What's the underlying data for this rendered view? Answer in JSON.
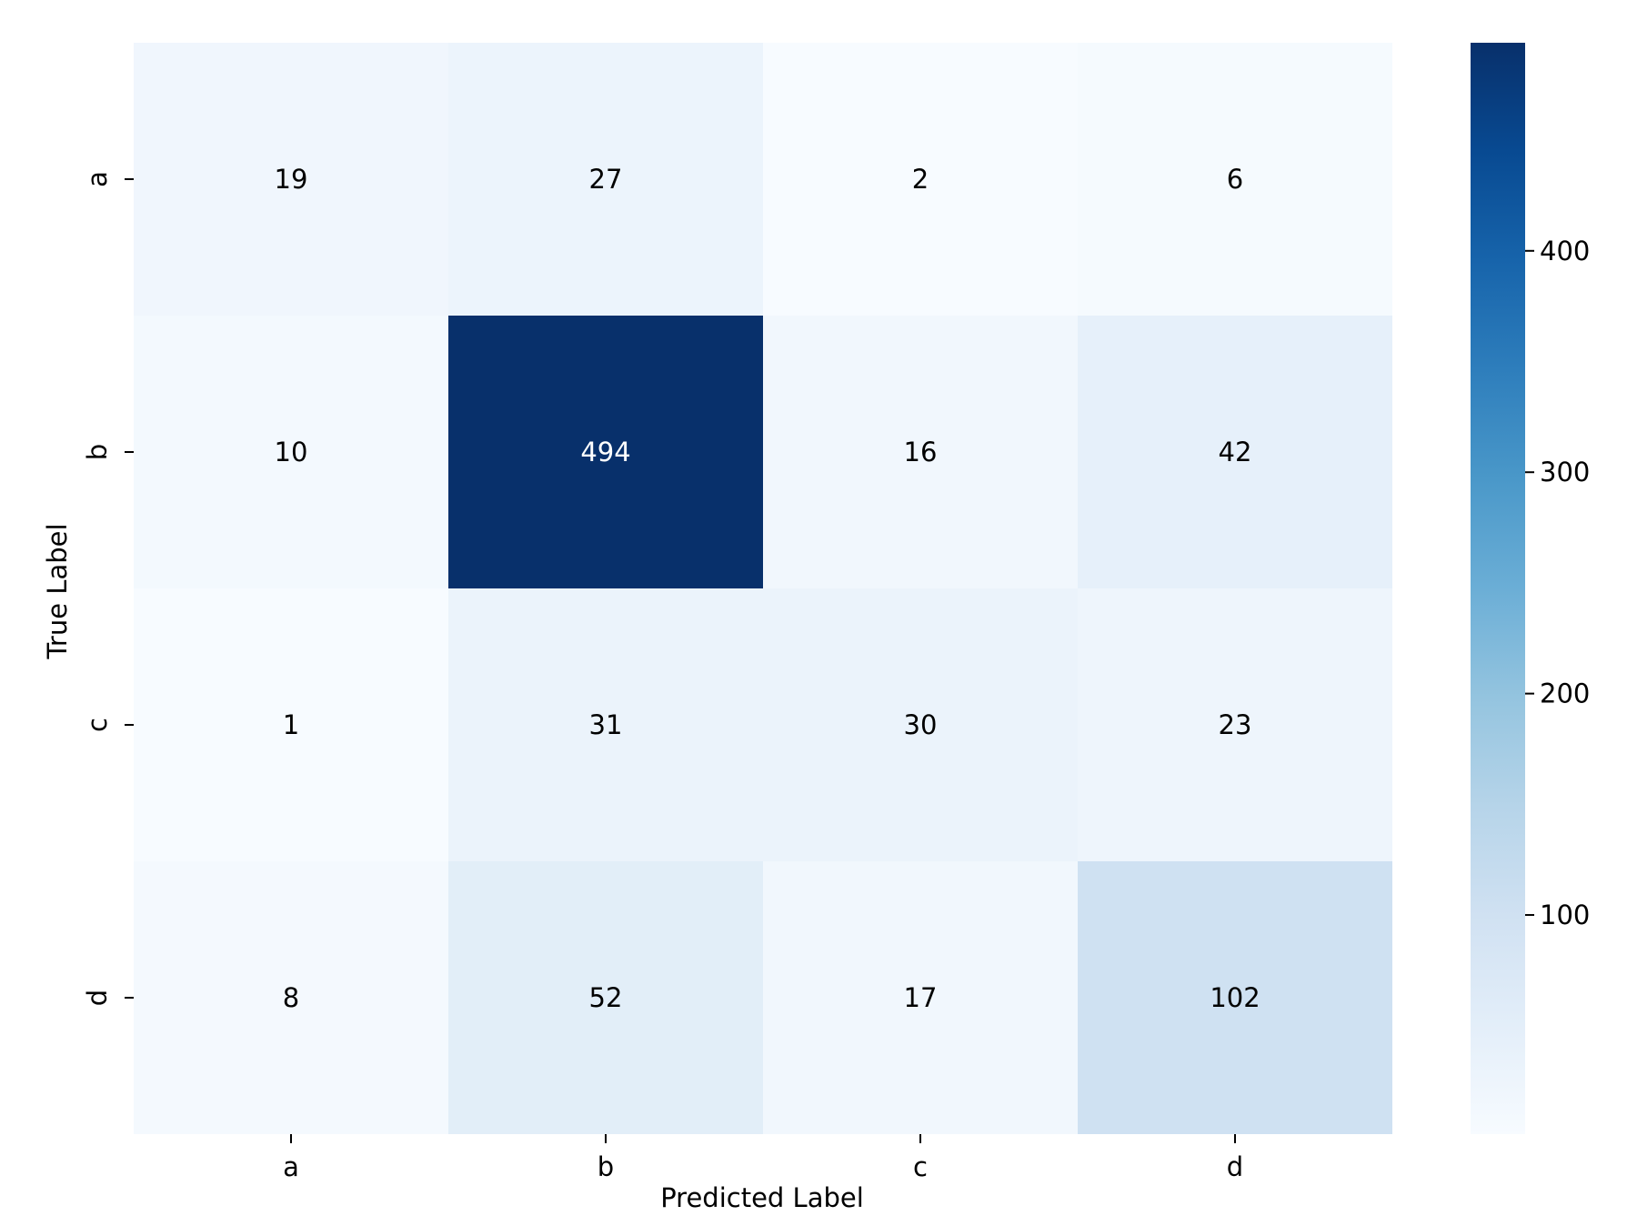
{
  "chart_data": {
    "type": "heatmap",
    "title": "",
    "xlabel": "Predicted Label",
    "ylabel": "True Label",
    "x_categories": [
      "a",
      "b",
      "c",
      "d"
    ],
    "y_categories": [
      "a",
      "b",
      "c",
      "d"
    ],
    "matrix": [
      [
        19,
        27,
        2,
        6
      ],
      [
        10,
        494,
        16,
        42
      ],
      [
        1,
        31,
        30,
        23
      ],
      [
        8,
        52,
        17,
        102
      ]
    ],
    "colormap": "Blues",
    "colorbar": {
      "range": [
        1,
        494
      ],
      "ticks": [
        100,
        200,
        300,
        400
      ]
    },
    "colors": {
      "low": "#f7fbff",
      "high": "#08306b",
      "text_dark": "#000000",
      "text_light": "#ffffff"
    }
  }
}
